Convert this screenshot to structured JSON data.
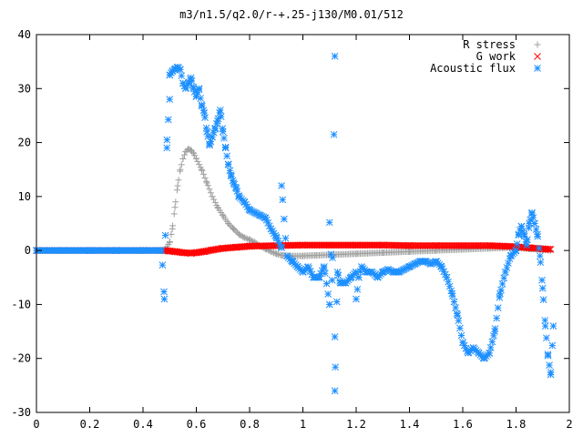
{
  "chart_data": {
    "type": "scatter",
    "title": "m3/n1.5/q2.0/r-+.25-j130/M0.01/512",
    "xlabel": "",
    "ylabel": "",
    "xlim": [
      0,
      2
    ],
    "ylim": [
      -30,
      40
    ],
    "grid": false,
    "legend_position": "top-right",
    "x_ticks": [
      0,
      0.2,
      0.4,
      0.6,
      0.8,
      1,
      1.2,
      1.4,
      1.6,
      1.8,
      2
    ],
    "x_tick_labels": [
      "0",
      "0.2",
      "0.4",
      "0.6",
      "0.8",
      "1",
      "1.2",
      "1.4",
      "1.6",
      "1.8",
      "2"
    ],
    "y_ticks": [
      -30,
      -20,
      -10,
      0,
      10,
      20,
      30,
      40
    ],
    "y_tick_labels": [
      "-30",
      "-20",
      "-10",
      "0",
      "10",
      "20",
      "30",
      "40"
    ],
    "series": [
      {
        "name": "R stress",
        "marker": "plus",
        "color": "#a0a0a0",
        "x": [
          0,
          0.1,
          0.2,
          0.3,
          0.4,
          0.48,
          0.5,
          0.51,
          0.52,
          0.53,
          0.54,
          0.55,
          0.56,
          0.57,
          0.58,
          0.59,
          0.6,
          0.62,
          0.64,
          0.66,
          0.68,
          0.7,
          0.72,
          0.74,
          0.76,
          0.78,
          0.8,
          0.82,
          0.84,
          0.86,
          0.88,
          0.9,
          0.92,
          0.95,
          1.0,
          1.05,
          1.1,
          1.2,
          1.3,
          1.4,
          1.5,
          1.6,
          1.7,
          1.75,
          1.8,
          1.85,
          1.9,
          1.93
        ],
        "y": [
          0,
          0,
          0,
          0,
          0,
          0,
          1.5,
          4,
          8,
          12,
          15,
          17,
          18.3,
          18.8,
          18.6,
          18,
          17,
          15,
          12.5,
          10,
          8,
          6.5,
          5,
          4,
          3,
          2.4,
          2,
          1.5,
          0.8,
          0.3,
          -0.2,
          -0.6,
          -0.9,
          -1,
          -1,
          -0.9,
          -0.8,
          -0.6,
          -0.4,
          -0.2,
          0,
          0.2,
          0.4,
          0.5,
          0.5,
          0.3,
          0.2,
          0
        ]
      },
      {
        "name": "G work",
        "marker": "cross",
        "color": "#ff0000",
        "x": [
          0,
          0.1,
          0.2,
          0.3,
          0.4,
          0.48,
          0.5,
          0.52,
          0.55,
          0.58,
          0.6,
          0.63,
          0.66,
          0.7,
          0.75,
          0.8,
          0.9,
          1.0,
          1.1,
          1.2,
          1.3,
          1.4,
          1.5,
          1.6,
          1.7,
          1.75,
          1.8,
          1.85,
          1.9,
          1.93
        ],
        "y": [
          0,
          0,
          0,
          0,
          0,
          0,
          -0.1,
          -0.2,
          -0.4,
          -0.5,
          -0.4,
          -0.2,
          0.1,
          0.4,
          0.6,
          0.8,
          0.9,
          1.0,
          1.0,
          1.0,
          1.0,
          0.9,
          0.9,
          0.9,
          0.9,
          0.8,
          0.7,
          0.5,
          0.3,
          0.2
        ]
      },
      {
        "name": "Acoustic flux",
        "marker": "star",
        "color": "#1e90ff",
        "x": [
          0,
          0.1,
          0.2,
          0.3,
          0.4,
          0.47,
          0.48,
          0.49,
          0.5,
          0.5,
          0.51,
          0.52,
          0.53,
          0.54,
          0.55,
          0.56,
          0.57,
          0.58,
          0.59,
          0.6,
          0.61,
          0.62,
          0.63,
          0.64,
          0.65,
          0.66,
          0.67,
          0.68,
          0.69,
          0.7,
          0.71,
          0.72,
          0.73,
          0.74,
          0.75,
          0.76,
          0.78,
          0.8,
          0.82,
          0.84,
          0.86,
          0.88,
          0.9,
          0.92,
          0.94,
          0.96,
          0.98,
          1.0,
          1.02,
          1.04,
          1.06,
          1.08,
          1.1,
          1.11,
          1.12,
          1.12,
          1.12,
          1.13,
          1.14,
          1.16,
          1.18,
          1.2,
          1.21,
          1.22,
          1.24,
          1.26,
          1.28,
          1.3,
          1.32,
          1.34,
          1.36,
          1.38,
          1.4,
          1.42,
          1.44,
          1.46,
          1.48,
          1.5,
          1.52,
          1.54,
          1.56,
          1.58,
          1.6,
          1.62,
          1.64,
          1.66,
          1.68,
          1.7,
          1.72,
          1.74,
          1.76,
          1.78,
          1.8,
          1.81,
          1.82,
          1.83,
          1.84,
          1.85,
          1.86,
          1.87,
          1.88,
          1.89,
          1.9,
          1.91,
          1.92,
          1.93,
          1.94,
          0.92,
          1.0,
          1.1,
          1.2
        ],
        "y": [
          0,
          0,
          0,
          0,
          0,
          0,
          -9,
          20.5,
          28,
          32.5,
          33.2,
          33.6,
          34,
          33.5,
          31,
          30,
          31,
          32,
          30,
          28.5,
          30,
          27,
          25.5,
          22,
          19.5,
          21,
          22.5,
          24,
          26,
          22,
          19,
          16,
          14,
          12.5,
          11.5,
          10,
          9,
          7.5,
          7,
          6.5,
          6,
          4,
          2.5,
          0.5,
          -1,
          -2,
          -3,
          -4,
          -3,
          -5,
          -5,
          -3,
          -10,
          -5.5,
          36,
          -16,
          -26,
          -4,
          -6,
          -6,
          -5,
          -4,
          -5,
          -3,
          -4,
          -4,
          -5,
          -4,
          -3.5,
          -4,
          -4,
          -3.5,
          -3,
          -2.5,
          -2,
          -2,
          -2.5,
          -2,
          -3,
          -5,
          -8,
          -12,
          -17,
          -19,
          -18,
          -19,
          -20,
          -19,
          -15,
          -8,
          -4,
          -1,
          0,
          3,
          4.5,
          3,
          1,
          5,
          7,
          5,
          3,
          -1,
          -7,
          -14,
          -19.5,
          -23,
          -14,
          12,
          -4,
          5.2,
          -9
        ]
      }
    ]
  }
}
